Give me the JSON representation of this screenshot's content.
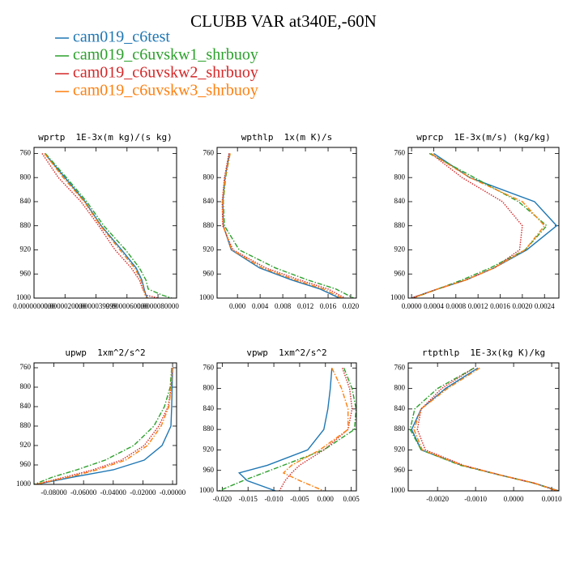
{
  "title": "CLUBB VAR at340E,-60N",
  "legend": [
    {
      "name": "cam019_c6test",
      "color": "#1f77b4",
      "style": "solid"
    },
    {
      "name": "cam019_c6uvskw1_shrbuoy",
      "color": "#2ca02c",
      "style": "dashdot"
    },
    {
      "name": "cam019_c6uvskw2_shrbuoy",
      "color": "#d62728",
      "style": "dotted"
    },
    {
      "name": "cam019_c6uvskw3_shrbuoy",
      "color": "#ff7f0e",
      "style": "dashdot"
    }
  ],
  "chart_data": [
    {
      "type": "line",
      "title": "wprtp  1E-3x(m kg)/(s kg)",
      "levels": [
        760,
        800,
        840,
        880,
        920,
        950,
        970,
        985,
        995,
        1000
      ],
      "ylim": [
        1000,
        750
      ],
      "yticks": [
        760,
        800,
        840,
        880,
        920,
        960,
        1000
      ],
      "xlim": [
        0,
        9.2e-06
      ],
      "xticks": [
        {
          "value": 0,
          "label": "0.0000000000"
        },
        {
          "value": 2e-06,
          "label": "0.0000020000"
        },
        {
          "value": 4e-06,
          "label": "0.0000039999"
        },
        {
          "value": 6e-06,
          "label": "0.0000060000"
        },
        {
          "value": 8e-06,
          "label": "0.0000080000"
        }
      ],
      "series": [
        {
          "values": [
            6.8e-07,
            1.99e-06,
            3.29e-06,
            4.34e-06,
            5.65e-06,
            6.59e-06,
            6.96e-06,
            7.11e-06,
            7.22e-06,
            7.32e-06
          ]
        },
        {
          "values": [
            7.3e-07,
            2.09e-06,
            3.4e-06,
            4.5e-06,
            5.91e-06,
            6.8e-06,
            7.22e-06,
            7.37e-06,
            8.26e-06,
            8.89e-06
          ]
        },
        {
          "values": [
            5.2e-07,
            1.57e-06,
            3.03e-06,
            4.18e-06,
            5.23e-06,
            6.28e-06,
            6.8e-06,
            7.01e-06,
            7.22e-06,
            8e-06
          ]
        },
        {
          "values": [
            6.8e-07,
            1.88e-06,
            3.24e-06,
            4.29e-06,
            5.54e-06,
            6.49e-06,
            6.9e-06,
            7.06e-06,
            7.17e-06,
            7.27e-06
          ]
        }
      ]
    },
    {
      "type": "line",
      "title": "wpthlp  1x(m K)/s",
      "levels": [
        760,
        800,
        840,
        880,
        920,
        950,
        970,
        985,
        1000
      ],
      "ylim": [
        1000,
        750
      ],
      "yticks": [
        760,
        800,
        840,
        880,
        920,
        960,
        1000
      ],
      "xlim": [
        -0.0036,
        0.021
      ],
      "xticks": [
        {
          "value": 0,
          "label": "0.000"
        },
        {
          "value": 0.004,
          "label": "0.004"
        },
        {
          "value": 0.008,
          "label": "0.008"
        },
        {
          "value": 0.012,
          "label": "0.012"
        },
        {
          "value": 0.016,
          "label": "0.016"
        },
        {
          "value": 0.02,
          "label": "0.020"
        }
      ],
      "series": [
        {
          "values": [
            -0.0014,
            -0.0022,
            -0.0026,
            -0.0025,
            -0.0011,
            0.0039,
            0.0096,
            0.0146,
            0.018
          ]
        },
        {
          "values": [
            -0.0013,
            -0.0021,
            -0.0025,
            -0.0023,
            0.0003,
            0.0067,
            0.0124,
            0.0174,
            0.0205
          ]
        },
        {
          "values": [
            -0.0015,
            -0.0023,
            -0.0027,
            -0.0026,
            -0.0008,
            0.005,
            0.011,
            0.016,
            0.019
          ]
        },
        {
          "values": [
            -0.0013,
            -0.0022,
            -0.0026,
            -0.0025,
            -0.001,
            0.0044,
            0.0102,
            0.0152,
            0.0185
          ]
        }
      ]
    },
    {
      "type": "line",
      "title": "wprcp  1E-3x(m/s) (kg/kg)",
      "levels": [
        760,
        800,
        840,
        880,
        920,
        950,
        970,
        985,
        1000
      ],
      "ylim": [
        1000,
        750
      ],
      "yticks": [
        760,
        800,
        840,
        880,
        920,
        960,
        1000
      ],
      "xlim": [
        -6e-05,
        0.00266
      ],
      "xticks": [
        {
          "value": 0,
          "label": "0.0000"
        },
        {
          "value": 0.0004,
          "label": "0.0004"
        },
        {
          "value": 0.0008,
          "label": "0.0008"
        },
        {
          "value": 0.0012,
          "label": "0.0012"
        },
        {
          "value": 0.0016,
          "label": "0.0016"
        },
        {
          "value": 0.002,
          "label": "0.0020"
        },
        {
          "value": 0.0024,
          "label": "0.0024"
        }
      ],
      "series": [
        {
          "values": [
            0.0004,
            0.00105,
            0.00222,
            0.00262,
            0.00208,
            0.00149,
            0.00098,
            0.00047,
            0.0
          ]
        },
        {
          "values": [
            0.00032,
            0.00113,
            0.00193,
            0.00244,
            0.00205,
            0.00142,
            0.00091,
            0.00047,
            3e-05
          ]
        },
        {
          "values": [
            0.00035,
            0.00091,
            0.00164,
            0.002,
            0.00195,
            0.00149,
            0.00098,
            0.00047,
            0.0
          ]
        },
        {
          "values": [
            0.00035,
            0.00105,
            0.002,
            0.0024,
            0.00205,
            0.00149,
            0.00098,
            0.00047,
            2e-05
          ]
        }
      ]
    },
    {
      "type": "line",
      "title": "upwp  1xm^2/s^2",
      "levels": [
        760,
        800,
        840,
        880,
        920,
        950,
        970,
        985,
        1000
      ],
      "ylim": [
        1000,
        750
      ],
      "yticks": [
        760,
        800,
        840,
        880,
        920,
        960,
        1000
      ],
      "xlim": [
        -0.0934,
        0.0027
      ],
      "xticks": [
        {
          "value": -0.08,
          "label": "-0.08000"
        },
        {
          "value": -0.06,
          "label": "-0.06000"
        },
        {
          "value": -0.04,
          "label": "-0.04000"
        },
        {
          "value": -0.02,
          "label": "-0.02000"
        },
        {
          "value": 0,
          "label": "-0.00000"
        }
      ],
      "series": [
        {
          "values": [
            0,
            -0.0003,
            -0.0006,
            -0.0011,
            -0.0071,
            -0.0191,
            -0.0399,
            -0.0672,
            -0.0918
          ]
        },
        {
          "values": [
            -0.0006,
            -0.0016,
            -0.0055,
            -0.0126,
            -0.0262,
            -0.0454,
            -0.0645,
            -0.0809,
            -0.0934
          ]
        },
        {
          "values": [
            -0.0003,
            -0.001,
            -0.003,
            -0.0093,
            -0.0191,
            -0.0344,
            -0.0536,
            -0.0727,
            -0.0923
          ]
        },
        {
          "values": [
            -0.0003,
            -0.0009,
            -0.0025,
            -0.0077,
            -0.0169,
            -0.0317,
            -0.0508,
            -0.0699,
            -0.0923
          ]
        }
      ]
    },
    {
      "type": "line",
      "title": "vpwp  1xm^2/s^2",
      "levels": [
        760,
        800,
        840,
        880,
        920,
        950,
        965,
        980,
        1000
      ],
      "ylim": [
        1000,
        750
      ],
      "yticks": [
        760,
        800,
        840,
        880,
        920,
        960,
        1000
      ],
      "xlim": [
        -0.021,
        0.006
      ],
      "xticks": [
        {
          "value": -0.02,
          "label": "-0.020"
        },
        {
          "value": -0.015,
          "label": "-0.015"
        },
        {
          "value": -0.01,
          "label": "-0.010"
        },
        {
          "value": -0.005,
          "label": "-0.005"
        },
        {
          "value": 0,
          "label": "0.000"
        },
        {
          "value": 0.005,
          "label": "0.005"
        }
      ],
      "series": [
        {
          "values": [
            0.00125,
            0.00094,
            0.00047,
            -0.00031,
            -0.00344,
            -0.01125,
            -0.01672,
            -0.01516,
            -0.00969
          ]
        },
        {
          "values": [
            0.00359,
            0.00516,
            0.00594,
            0.00563,
            -0.00031,
            -0.00813,
            -0.01203,
            -0.01594,
            -0.02063
          ]
        },
        {
          "values": [
            0.00328,
            0.00469,
            0.00516,
            0.00438,
            -0.00031,
            -0.005,
            -0.00656,
            -0.00781,
            -0.00891
          ]
        },
        {
          "values": [
            0.00125,
            0.00313,
            0.00438,
            0.00438,
            -0.00109,
            -0.00656,
            -0.00813,
            -0.005,
            -0.00031
          ]
        }
      ]
    },
    {
      "type": "line",
      "title": "rtpthlp  1E-3x(kg K)/kg",
      "levels": [
        760,
        800,
        840,
        880,
        920,
        950,
        970,
        985,
        1000
      ],
      "ylim": [
        1000,
        750
      ],
      "yticks": [
        760,
        800,
        840,
        880,
        920,
        960,
        1000
      ],
      "xlim": [
        -0.00277,
        0.00119
      ],
      "xticks": [
        {
          "value": -0.002,
          "label": "-0.0020"
        },
        {
          "value": -0.001,
          "label": "-0.0010"
        },
        {
          "value": 0,
          "label": "0.0000"
        },
        {
          "value": 0.001,
          "label": "0.0010"
        }
      ],
      "series": [
        {
          "values": [
            -0.00094,
            -0.00179,
            -0.00243,
            -0.00268,
            -0.00243,
            -0.00136,
            -0.0003,
            0.00055,
            0.00119
          ]
        },
        {
          "values": [
            -0.00104,
            -0.002,
            -0.0026,
            -0.00272,
            -0.00243,
            -0.0014,
            -0.00032,
            0.00053,
            0.00115
          ]
        },
        {
          "values": [
            -0.00104,
            -0.00189,
            -0.00243,
            -0.00253,
            -0.00232,
            -0.00132,
            -0.0003,
            0.00055,
            0.00112
          ]
        },
        {
          "values": [
            -0.00089,
            -0.00174,
            -0.00243,
            -0.00262,
            -0.0024,
            -0.00136,
            -0.0003,
            0.00055,
            0.00117
          ]
        }
      ]
    }
  ]
}
